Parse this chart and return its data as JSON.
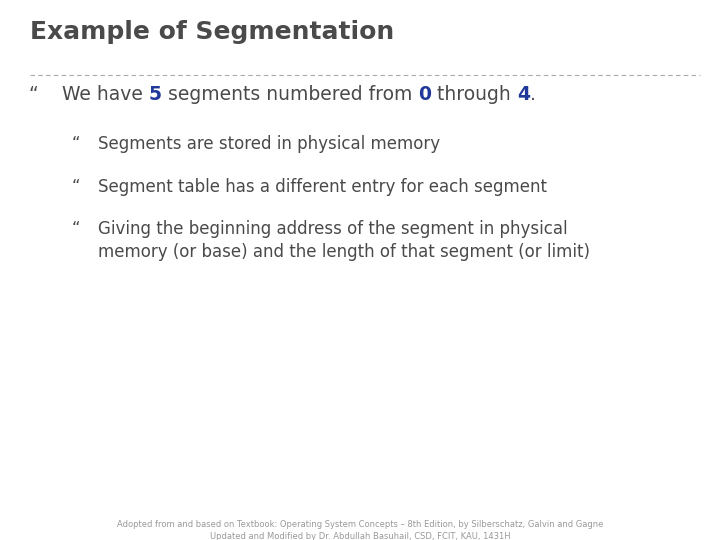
{
  "title": "Example of Segmentation",
  "background_color": "#ffffff",
  "title_color": "#4a4a4a",
  "title_fontsize": 18,
  "divider_color": "#aaaaaa",
  "bullet_color": "#4a4a4a",
  "text_color": "#4a4a4a",
  "blue_color": "#1F3899",
  "level1_bullet": "“",
  "level2_bullet": "“",
  "level1_fontsize": 13.5,
  "level2_fontsize": 12,
  "footer_line1": "Adopted from and based on Textbook: Operating System Concepts – 8th Edition, by Silberschatz, Galvin and Gagne",
  "footer_line2": "Updated and Modified by Dr. Abdullah Basuhail, CSD, FCIT, KAU, 1431H",
  "footer_fontsize": 6,
  "footer_color": "#999999"
}
